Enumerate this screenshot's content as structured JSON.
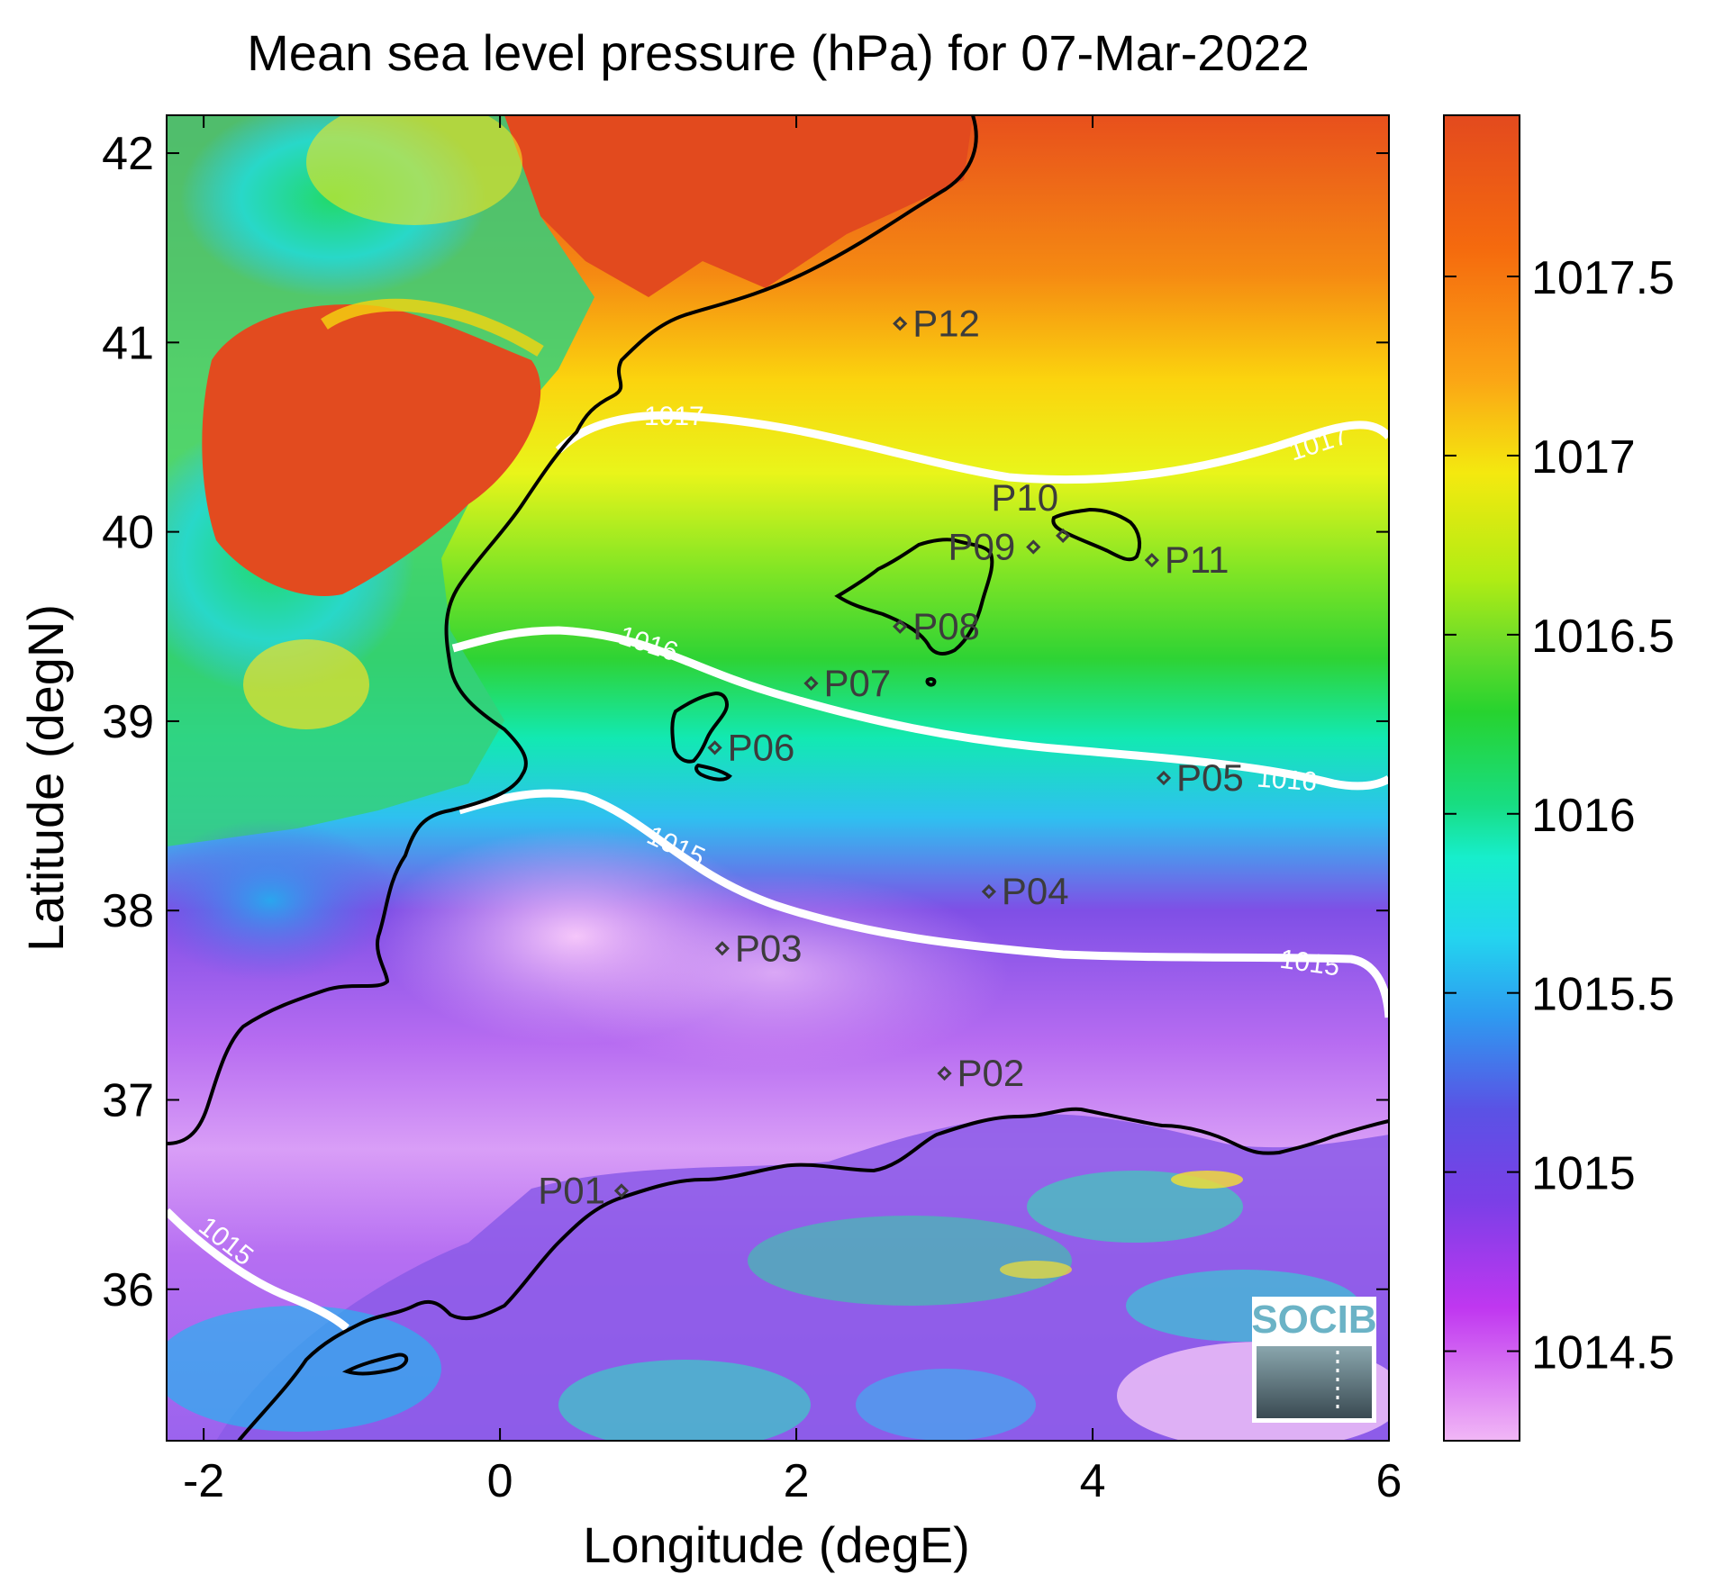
{
  "title": "Mean sea level pressure (hPa) for 07-Mar-2022",
  "xlabel": "Longitude (degE)",
  "ylabel": "Latitude (degN)",
  "x_ticks": [
    "-2",
    "0",
    "2",
    "4",
    "6"
  ],
  "y_ticks": [
    "42",
    "41",
    "40",
    "39",
    "38",
    "37",
    "36"
  ],
  "colorbar_ticks": [
    "1017.5",
    "1017",
    "1016.5",
    "1016",
    "1015.5",
    "1015",
    "1014.5"
  ],
  "contour_labels": [
    "1017",
    "1017",
    "1016",
    "1016",
    "1015",
    "1015",
    "1015"
  ],
  "points": [
    {
      "id": "P01",
      "lon": 0.82,
      "lat": 36.52
    },
    {
      "id": "P02",
      "lon": 3.0,
      "lat": 37.14
    },
    {
      "id": "P03",
      "lon": 1.5,
      "lat": 37.8
    },
    {
      "id": "P04",
      "lon": 3.3,
      "lat": 38.1
    },
    {
      "id": "P05",
      "lon": 4.48,
      "lat": 38.7
    },
    {
      "id": "P06",
      "lon": 1.45,
      "lat": 38.86
    },
    {
      "id": "P07",
      "lon": 2.1,
      "lat": 39.2
    },
    {
      "id": "P08",
      "lon": 2.7,
      "lat": 39.5
    },
    {
      "id": "P09",
      "lon": 3.6,
      "lat": 39.92
    },
    {
      "id": "P10",
      "lon": 3.8,
      "lat": 39.98
    },
    {
      "id": "P11",
      "lon": 4.4,
      "lat": 39.85
    },
    {
      "id": "P12",
      "lon": 2.7,
      "lat": 41.1
    }
  ],
  "logo": "SOCIB",
  "colors": {
    "contour": "#ffffff",
    "coastline": "#000000",
    "marker": "#3c3c3c"
  },
  "icons": [
    "socib-logo"
  ]
}
